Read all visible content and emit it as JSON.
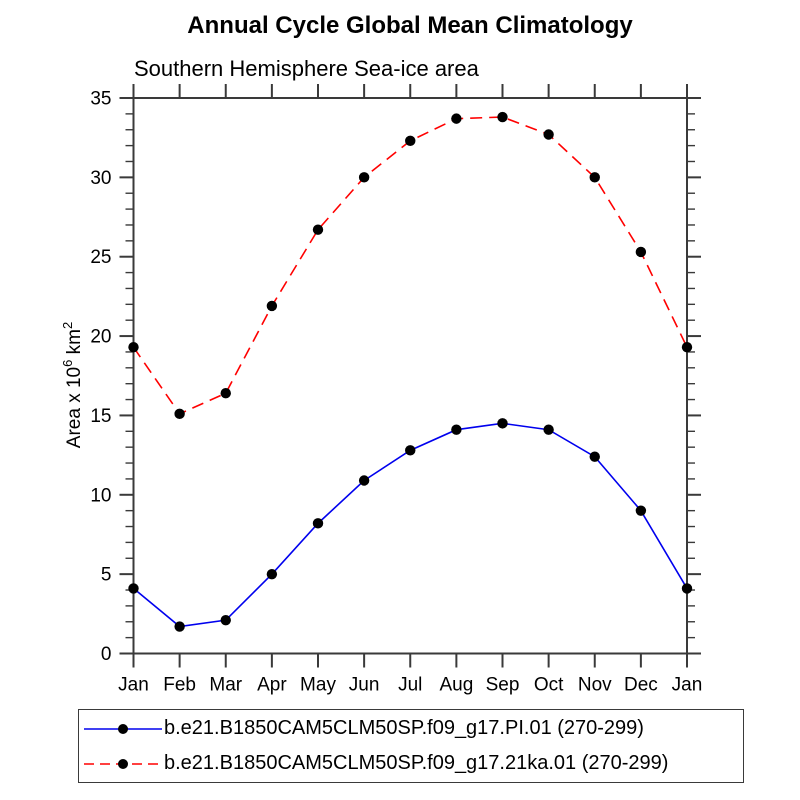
{
  "chart_data": {
    "type": "line",
    "title": "Annual Cycle Global Mean Climatology",
    "subtitle": "Southern Hemisphere Sea-ice area",
    "ylabel": "Area x 10^6 km^2",
    "xlabel": "",
    "categories": [
      "Jan",
      "Feb",
      "Mar",
      "Apr",
      "May",
      "Jun",
      "Jul",
      "Aug",
      "Sep",
      "Oct",
      "Nov",
      "Dec",
      "Jan"
    ],
    "ylim": [
      0,
      35
    ],
    "ytick_major_interval": 5,
    "ytick_minor_interval": 1,
    "ytick_labels": [
      "0",
      "5",
      "10",
      "15",
      "20",
      "25",
      "30",
      "35"
    ],
    "grid": false,
    "legend_position": "bottom",
    "series": [
      {
        "name": "b.e21.B1850CAM5CLM50SP.f09_g17.PI.01 (270-299)",
        "color": "#0000ee",
        "line_style": "solid",
        "marker": "filled-circle",
        "marker_color": "#000000",
        "values": [
          4.1,
          1.7,
          2.1,
          5.0,
          8.2,
          10.9,
          12.8,
          14.1,
          14.5,
          14.1,
          12.4,
          9.0,
          4.1
        ]
      },
      {
        "name": "b.e21.B1850CAM5CLM50SP.f09_g17.21ka.01 (270-299)",
        "color": "#ff0000",
        "line_style": "dashed",
        "marker": "filled-circle",
        "marker_color": "#000000",
        "values": [
          19.3,
          15.1,
          16.4,
          21.9,
          26.7,
          30.0,
          32.3,
          33.7,
          33.8,
          32.7,
          30.0,
          25.3,
          19.3
        ]
      }
    ]
  },
  "colors": {
    "background": "#ffffff",
    "axis": "#3a3a3a",
    "text": "#000000",
    "legend_border": "#3a3a3a"
  }
}
